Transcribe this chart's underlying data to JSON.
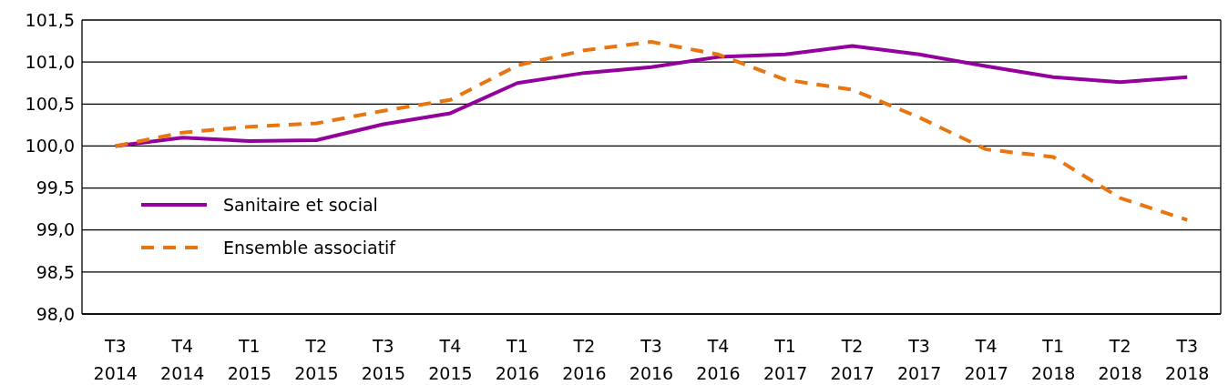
{
  "chart_data": {
    "type": "line",
    "categories": [
      "T3 2014",
      "T4 2014",
      "T1 2015",
      "T2 2015",
      "T3 2015",
      "T4 2015",
      "T1 2016",
      "T2 2016",
      "T3 2016",
      "T4 2016",
      "T1 2017",
      "T2 2017",
      "T3 2017",
      "T4 2017",
      "T1 2018",
      "T2 2018",
      "T3 2018"
    ],
    "series": [
      {
        "name": "Sanitaire et social",
        "color": "#93009b",
        "line_style": "solid",
        "values": [
          100.0,
          100.1,
          100.06,
          100.07,
          100.26,
          100.39,
          100.75,
          100.87,
          100.94,
          101.06,
          101.09,
          101.19,
          101.09,
          100.95,
          100.82,
          100.76,
          100.82
        ]
      },
      {
        "name": "Ensemble associatif",
        "color": "#e8750f",
        "line_style": "dashed",
        "values": [
          100.0,
          100.16,
          100.23,
          100.27,
          100.42,
          100.55,
          100.96,
          101.14,
          101.24,
          101.09,
          100.79,
          100.67,
          100.34,
          99.96,
          99.87,
          99.38,
          99.12
        ]
      }
    ],
    "ylim": [
      98.0,
      101.5
    ],
    "yticks": [
      {
        "value": 98.0,
        "label": "98,0"
      },
      {
        "value": 98.5,
        "label": "98,5"
      },
      {
        "value": 99.0,
        "label": "99,0"
      },
      {
        "value": 99.5,
        "label": "99,5"
      },
      {
        "value": 100.0,
        "label": "100,0"
      },
      {
        "value": 100.5,
        "label": "100,5"
      },
      {
        "value": 101.0,
        "label": "101,0"
      },
      {
        "value": 101.5,
        "label": "101,5"
      }
    ],
    "grid": "y",
    "legend": "left"
  }
}
